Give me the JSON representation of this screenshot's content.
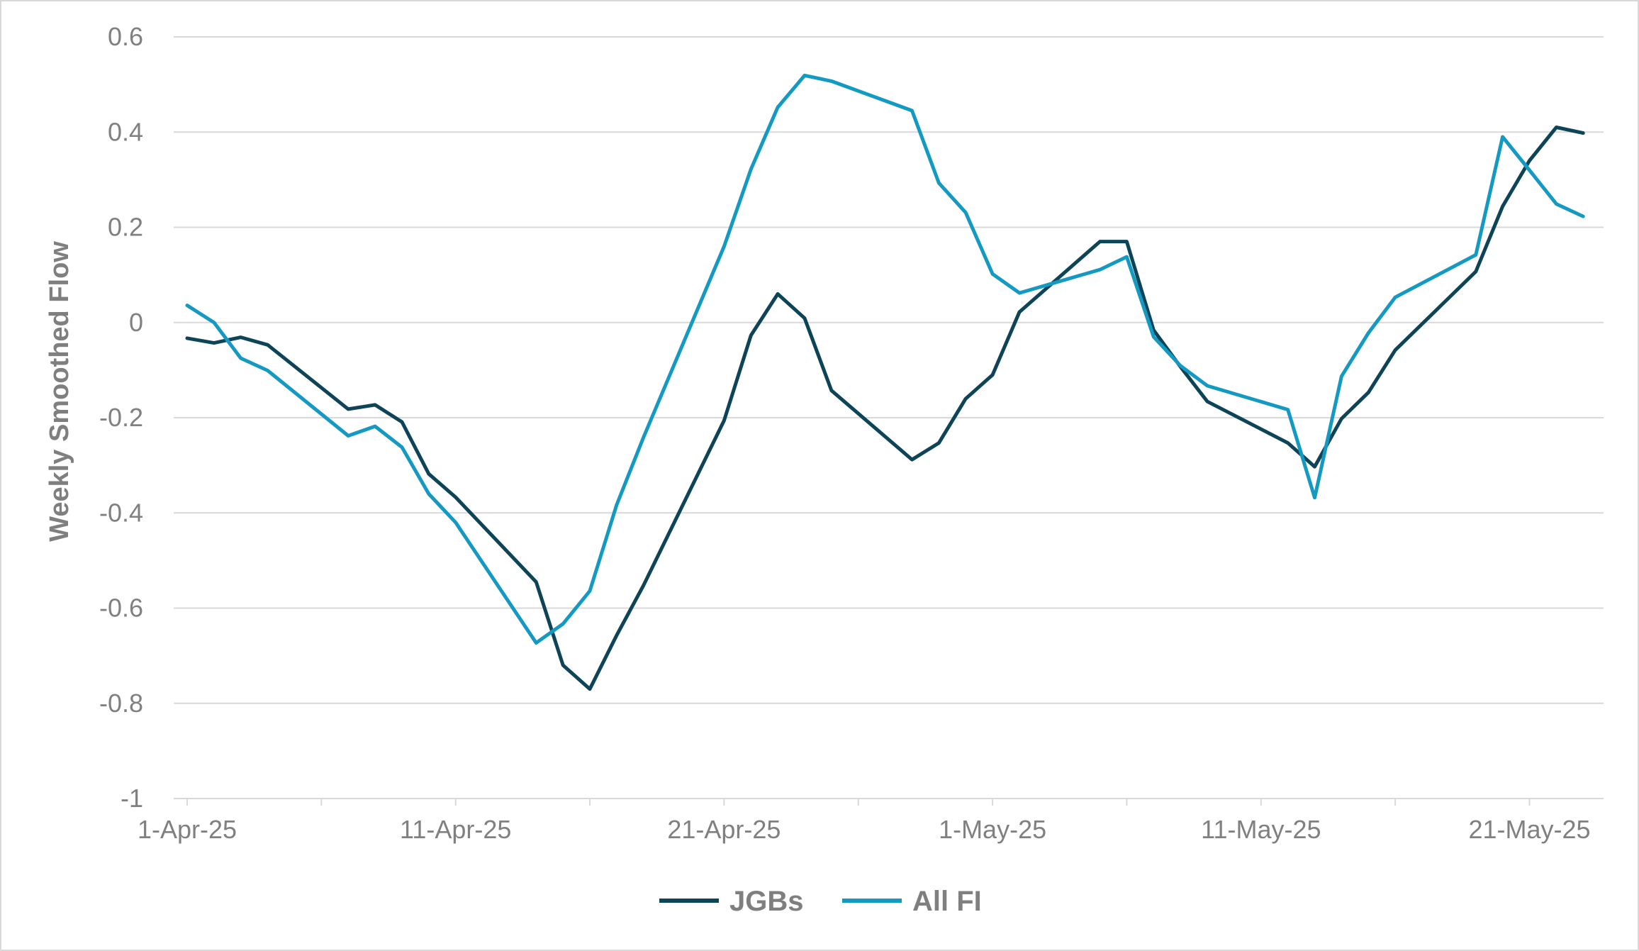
{
  "chart_data": {
    "type": "line",
    "title": "",
    "xlabel": "",
    "ylabel": "Weekly Smoothed Flow",
    "ylim": [
      -1,
      0.6
    ],
    "yticks": [
      0.6,
      0.4,
      0.2,
      0,
      -0.2,
      -0.4,
      -0.6,
      -0.8,
      -1
    ],
    "ytick_labels": [
      "0.6",
      "0.4",
      "0.2",
      "0",
      "-0.2",
      "-0.4",
      "-0.6",
      "-0.8",
      "-1"
    ],
    "xlim": [
      "2025-04-01",
      "2025-05-23"
    ],
    "xticks": [
      "2025-04-01",
      "2025-04-11",
      "2025-04-21",
      "2025-05-01",
      "2025-05-11",
      "2025-05-21"
    ],
    "xtick_labels": [
      "1-Apr-25",
      "11-Apr-25",
      "21-Apr-25",
      "1-May-25",
      "11-May-25",
      "21-May-25"
    ],
    "grid": "horizontal",
    "legend": "bottom-center",
    "colors": {
      "gridline": "#d9d9d9",
      "axis_text": "#808080"
    },
    "series": [
      {
        "name": "JGBs",
        "color": "#0e4457",
        "points": [
          [
            "2025-04-01",
            -0.033
          ],
          [
            "2025-04-02",
            -0.043
          ],
          [
            "2025-04-03",
            -0.031
          ],
          [
            "2025-04-04",
            -0.047
          ],
          [
            "2025-04-07",
            -0.182
          ],
          [
            "2025-04-08",
            -0.173
          ],
          [
            "2025-04-09",
            -0.209
          ],
          [
            "2025-04-10",
            -0.318
          ],
          [
            "2025-04-11",
            -0.367
          ],
          [
            "2025-04-14",
            -0.545
          ],
          [
            "2025-04-15",
            -0.72
          ],
          [
            "2025-04-16",
            -0.77
          ],
          [
            "2025-04-17",
            -0.657
          ],
          [
            "2025-04-18",
            -0.552
          ],
          [
            "2025-04-21",
            -0.206
          ],
          [
            "2025-04-22",
            -0.027
          ],
          [
            "2025-04-23",
            0.06
          ],
          [
            "2025-04-24",
            0.009
          ],
          [
            "2025-04-25",
            -0.143
          ],
          [
            "2025-04-28",
            -0.288
          ],
          [
            "2025-04-29",
            -0.253
          ],
          [
            "2025-04-30",
            -0.16
          ],
          [
            "2025-05-01",
            -0.11
          ],
          [
            "2025-05-02",
            0.022
          ],
          [
            "2025-05-05",
            0.17
          ],
          [
            "2025-05-06",
            0.17
          ],
          [
            "2025-05-07",
            -0.016
          ],
          [
            "2025-05-08",
            -0.093
          ],
          [
            "2025-05-09",
            -0.166
          ],
          [
            "2025-05-12",
            -0.253
          ],
          [
            "2025-05-13",
            -0.303
          ],
          [
            "2025-05-14",
            -0.202
          ],
          [
            "2025-05-15",
            -0.147
          ],
          [
            "2025-05-16",
            -0.058
          ],
          [
            "2025-05-19",
            0.107
          ],
          [
            "2025-05-20",
            0.244
          ],
          [
            "2025-05-21",
            0.34
          ],
          [
            "2025-05-22",
            0.41
          ],
          [
            "2025-05-23",
            0.398
          ]
        ]
      },
      {
        "name": "All FI",
        "color": "#1499c3",
        "points": [
          [
            "2025-04-01",
            0.036
          ],
          [
            "2025-04-02",
            0.0
          ],
          [
            "2025-04-03",
            -0.075
          ],
          [
            "2025-04-04",
            -0.101
          ],
          [
            "2025-04-07",
            -0.238
          ],
          [
            "2025-04-08",
            -0.218
          ],
          [
            "2025-04-09",
            -0.262
          ],
          [
            "2025-04-10",
            -0.36
          ],
          [
            "2025-04-11",
            -0.42
          ],
          [
            "2025-04-14",
            -0.673
          ],
          [
            "2025-04-15",
            -0.633
          ],
          [
            "2025-04-16",
            -0.564
          ],
          [
            "2025-04-17",
            -0.383
          ],
          [
            "2025-04-18",
            -0.241
          ],
          [
            "2025-04-21",
            0.16
          ],
          [
            "2025-04-22",
            0.322
          ],
          [
            "2025-04-23",
            0.452
          ],
          [
            "2025-04-24",
            0.519
          ],
          [
            "2025-04-25",
            0.507
          ],
          [
            "2025-04-28",
            0.445
          ],
          [
            "2025-04-29",
            0.293
          ],
          [
            "2025-04-30",
            0.231
          ],
          [
            "2025-05-01",
            0.102
          ],
          [
            "2025-05-02",
            0.062
          ],
          [
            "2025-05-05",
            0.111
          ],
          [
            "2025-05-06",
            0.138
          ],
          [
            "2025-05-07",
            -0.03
          ],
          [
            "2025-05-08",
            -0.091
          ],
          [
            "2025-05-09",
            -0.133
          ],
          [
            "2025-05-12",
            -0.183
          ],
          [
            "2025-05-13",
            -0.368
          ],
          [
            "2025-05-14",
            -0.113
          ],
          [
            "2025-05-15",
            -0.022
          ],
          [
            "2025-05-16",
            0.053
          ],
          [
            "2025-05-19",
            0.142
          ],
          [
            "2025-05-20",
            0.39
          ],
          [
            "2025-05-21",
            0.32
          ],
          [
            "2025-05-22",
            0.249
          ],
          [
            "2025-05-23",
            0.223
          ]
        ]
      }
    ]
  }
}
